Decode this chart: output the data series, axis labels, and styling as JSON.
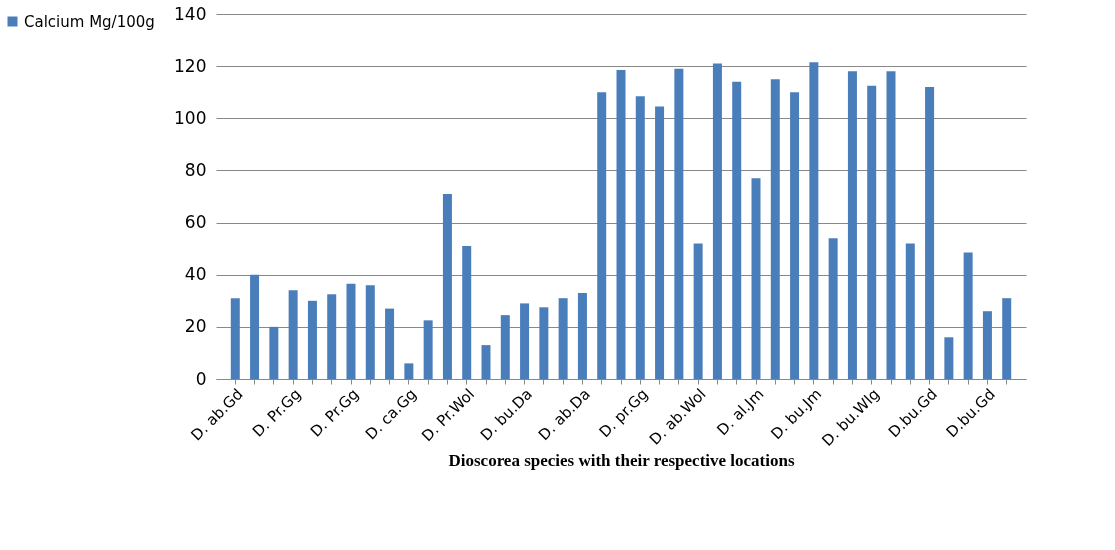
{
  "chart_data": {
    "type": "bar",
    "xlabel": "Dioscorea species with their respective locations",
    "categories": [
      "D. ab.Gd",
      null,
      null,
      "D. Pr.Gg",
      null,
      null,
      "D. Pr.Gg",
      null,
      null,
      "D. ca.Gg",
      null,
      null,
      "D. Pr.Wol",
      null,
      null,
      "D. bu.Da",
      null,
      null,
      "D. ab.Da",
      null,
      null,
      "D. pr.Gg",
      null,
      null,
      "D. ab.Wol",
      null,
      null,
      "D. al.Jm",
      null,
      null,
      "D. bu.Jm",
      null,
      null,
      "D. bu.Wlg",
      null,
      null,
      "D.bu.Gd",
      null,
      null,
      "D.bu.Gd",
      null
    ],
    "series": [
      {
        "name": "Calcium Mg/100g",
        "color": "#4a7ebb",
        "values": [
          31,
          40,
          20,
          34,
          30,
          32.5,
          36.5,
          36,
          27,
          6,
          22.5,
          71,
          51,
          13,
          24.5,
          29,
          27.5,
          31,
          33,
          110,
          118.5,
          108.5,
          104.5,
          119,
          52,
          121,
          114,
          77,
          115,
          110,
          121.5,
          54,
          118,
          112.5,
          118,
          52,
          112,
          16,
          48.5,
          26,
          31
        ]
      }
    ],
    "ylim": [
      0,
      140
    ],
    "yticks": [
      0,
      20,
      40,
      60,
      80,
      100,
      120,
      140
    ],
    "grid": "y",
    "legend": "left"
  }
}
